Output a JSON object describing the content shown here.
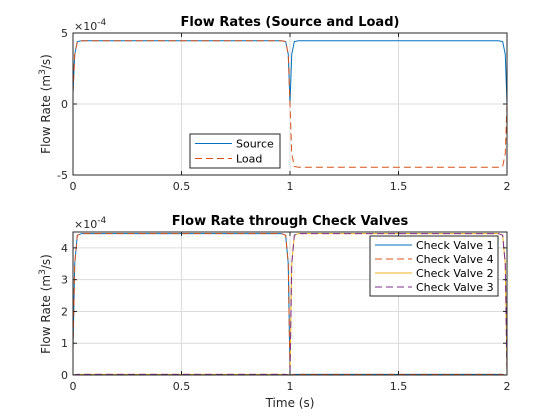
{
  "chart_data": [
    {
      "type": "line",
      "title": "Flow Rates (Source and Load)",
      "xlabel": "",
      "ylabel": "Flow Rate (m³/s)",
      "ylabel_parts": {
        "base": "Flow Rate (m",
        "sup": "3",
        "tail": "/s)"
      },
      "exponent": {
        "base": "×10",
        "power": "-4"
      },
      "xlim": [
        0,
        2
      ],
      "ylim": [
        -5,
        5
      ],
      "xticks": [
        0,
        0.5,
        1,
        1.5,
        2
      ],
      "xticklabels": [
        "0",
        "0.5",
        "1",
        "1.5",
        "2"
      ],
      "yticks": [
        -5,
        0,
        5
      ],
      "yticklabels": [
        "-5",
        "0",
        "5"
      ],
      "grid": true,
      "legend_position": "bottom-center",
      "series": [
        {
          "name": "Source",
          "color": "#0072BD",
          "dash": "solid",
          "x": [
            0,
            0.008,
            0.02,
            0.04,
            0.96,
            0.98,
            0.992,
            1.0,
            1.008,
            1.02,
            1.04,
            1.96,
            1.98,
            1.992,
            2.0
          ],
          "y": [
            0.8,
            3.5,
            4.4,
            4.45,
            4.45,
            4.4,
            3.5,
            0,
            3.5,
            4.4,
            4.45,
            4.45,
            4.4,
            3.5,
            0
          ]
        },
        {
          "name": "Load",
          "color": "#D95319",
          "dash": "dashed",
          "x": [
            0,
            0.008,
            0.02,
            0.04,
            0.96,
            0.98,
            0.992,
            1.0,
            1.008,
            1.02,
            1.04,
            1.96,
            1.98,
            1.992,
            2.0
          ],
          "y": [
            0.8,
            3.5,
            4.4,
            4.45,
            4.45,
            4.4,
            3.5,
            0,
            -3.5,
            -4.4,
            -4.45,
            -4.45,
            -4.4,
            -3.5,
            0
          ]
        }
      ]
    },
    {
      "type": "line",
      "title": "Flow Rate through Check Valves",
      "xlabel": "Time (s)",
      "ylabel": "Flow Rate (m³/s)",
      "ylabel_parts": {
        "base": "Flow Rate (m",
        "sup": "3",
        "tail": "/s)"
      },
      "exponent": {
        "base": "×10",
        "power": "-4"
      },
      "xlim": [
        0,
        2
      ],
      "ylim": [
        0,
        4.5
      ],
      "xticks": [
        0,
        0.5,
        1,
        1.5,
        2
      ],
      "xticklabels": [
        "0",
        "0.5",
        "1",
        "1.5",
        "2"
      ],
      "yticks": [
        0,
        1,
        2,
        3,
        4
      ],
      "yticklabels": [
        "0",
        "1",
        "2",
        "3",
        "4"
      ],
      "grid": true,
      "legend_position": "top-right",
      "series": [
        {
          "name": "Check Valve 1",
          "color": "#0072BD",
          "dash": "solid",
          "x": [
            0,
            0.008,
            0.02,
            0.04,
            0.96,
            0.98,
            0.992,
            1.0,
            1.02,
            1.98,
            1.992,
            2.0
          ],
          "y": [
            0.8,
            3.5,
            4.4,
            4.45,
            4.45,
            4.4,
            3.5,
            0,
            0.02,
            0.02,
            0,
            0
          ]
        },
        {
          "name": "Check Valve 4",
          "color": "#D95319",
          "dash": "dashed",
          "x": [
            0,
            0.008,
            0.02,
            0.04,
            0.96,
            0.98,
            0.992,
            1.0,
            1.02,
            1.98,
            1.992,
            2.0
          ],
          "y": [
            0.8,
            3.5,
            4.4,
            4.45,
            4.45,
            4.4,
            3.5,
            0,
            0.02,
            0.02,
            0,
            0
          ]
        },
        {
          "name": "Check Valve 2",
          "color": "#EDB120",
          "dash": "solid",
          "x": [
            0,
            0.02,
            0.98,
            1.0,
            1.008,
            1.02,
            1.04,
            1.96,
            1.98,
            1.992,
            2.0
          ],
          "y": [
            0,
            0.02,
            0.02,
            0,
            3.5,
            4.4,
            4.45,
            4.45,
            4.4,
            3.5,
            0
          ]
        },
        {
          "name": "Check Valve 3",
          "color": "#7E2F8E",
          "dash": "dashed",
          "x": [
            0,
            0.02,
            0.98,
            1.0,
            1.008,
            1.02,
            1.04,
            1.96,
            1.98,
            1.992,
            2.0
          ],
          "y": [
            0,
            0.02,
            0.02,
            0,
            3.5,
            4.4,
            4.45,
            4.45,
            4.4,
            3.5,
            0
          ]
        }
      ]
    }
  ]
}
